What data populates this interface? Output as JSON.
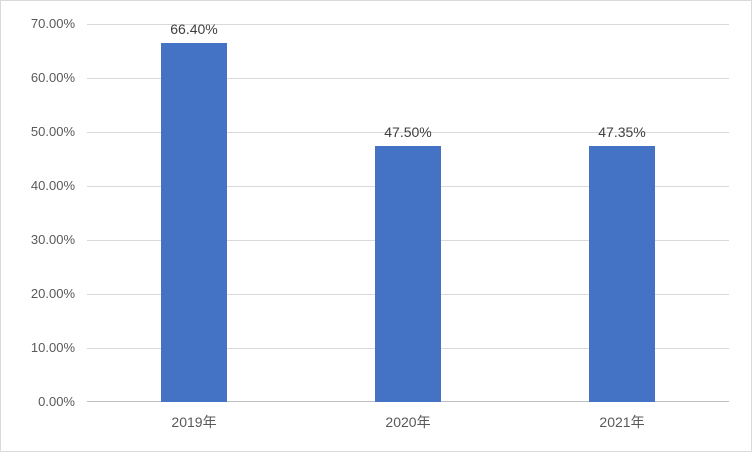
{
  "chart_data": {
    "type": "bar",
    "title": "",
    "xlabel": "",
    "ylabel": "",
    "categories": [
      "2019年",
      "2020年",
      "2021年"
    ],
    "values": [
      66.4,
      47.5,
      47.35
    ],
    "data_labels": [
      "66.40%",
      "47.50%",
      "47.35%"
    ],
    "ylim": [
      0,
      70
    ],
    "ytick_step": 10,
    "ytick_labels": [
      "0.00%",
      "10.00%",
      "20.00%",
      "30.00%",
      "40.00%",
      "50.00%",
      "60.00%",
      "70.00%"
    ],
    "grid": true,
    "legend": false,
    "colors": {
      "bar": "#4472C4",
      "gridline": "#D9D9D9",
      "axis_line": "#BFBFBF",
      "data_label": "#404040",
      "tick_label": "#595959",
      "border": "#D9D9D9",
      "background": "#FFFFFF"
    }
  }
}
